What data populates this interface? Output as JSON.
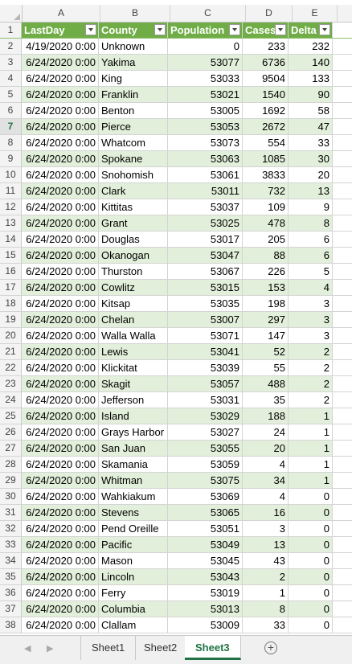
{
  "columns": [
    "A",
    "B",
    "C",
    "D",
    "E"
  ],
  "header": {
    "row_num": "1",
    "cells": [
      "LastDay",
      "County",
      "Population",
      "Cases",
      "Delta"
    ]
  },
  "rows": [
    [
      "2",
      "4/19/2020 0:00",
      "Unknown",
      "0",
      "233",
      "232"
    ],
    [
      "3",
      "6/24/2020 0:00",
      "Yakima",
      "53077",
      "6736",
      "140"
    ],
    [
      "4",
      "6/24/2020 0:00",
      "King",
      "53033",
      "9504",
      "133"
    ],
    [
      "5",
      "6/24/2020 0:00",
      "Franklin",
      "53021",
      "1540",
      "90"
    ],
    [
      "6",
      "6/24/2020 0:00",
      "Benton",
      "53005",
      "1692",
      "58"
    ],
    [
      "7",
      "6/24/2020 0:00",
      "Pierce",
      "53053",
      "2672",
      "47"
    ],
    [
      "8",
      "6/24/2020 0:00",
      "Whatcom",
      "53073",
      "554",
      "33"
    ],
    [
      "9",
      "6/24/2020 0:00",
      "Spokane",
      "53063",
      "1085",
      "30"
    ],
    [
      "10",
      "6/24/2020 0:00",
      "Snohomish",
      "53061",
      "3833",
      "20"
    ],
    [
      "11",
      "6/24/2020 0:00",
      "Clark",
      "53011",
      "732",
      "13"
    ],
    [
      "12",
      "6/24/2020 0:00",
      "Kittitas",
      "53037",
      "109",
      "9"
    ],
    [
      "13",
      "6/24/2020 0:00",
      "Grant",
      "53025",
      "478",
      "8"
    ],
    [
      "14",
      "6/24/2020 0:00",
      "Douglas",
      "53017",
      "205",
      "6"
    ],
    [
      "15",
      "6/24/2020 0:00",
      "Okanogan",
      "53047",
      "88",
      "6"
    ],
    [
      "16",
      "6/24/2020 0:00",
      "Thurston",
      "53067",
      "226",
      "5"
    ],
    [
      "17",
      "6/24/2020 0:00",
      "Cowlitz",
      "53015",
      "153",
      "4"
    ],
    [
      "18",
      "6/24/2020 0:00",
      "Kitsap",
      "53035",
      "198",
      "3"
    ],
    [
      "19",
      "6/24/2020 0:00",
      "Chelan",
      "53007",
      "297",
      "3"
    ],
    [
      "20",
      "6/24/2020 0:00",
      "Walla Walla",
      "53071",
      "147",
      "3"
    ],
    [
      "21",
      "6/24/2020 0:00",
      "Lewis",
      "53041",
      "52",
      "2"
    ],
    [
      "22",
      "6/24/2020 0:00",
      "Klickitat",
      "53039",
      "55",
      "2"
    ],
    [
      "23",
      "6/24/2020 0:00",
      "Skagit",
      "53057",
      "488",
      "2"
    ],
    [
      "24",
      "6/24/2020 0:00",
      "Jefferson",
      "53031",
      "35",
      "2"
    ],
    [
      "25",
      "6/24/2020 0:00",
      "Island",
      "53029",
      "188",
      "1"
    ],
    [
      "26",
      "6/24/2020 0:00",
      "Grays Harbor",
      "53027",
      "24",
      "1"
    ],
    [
      "27",
      "6/24/2020 0:00",
      "San Juan",
      "53055",
      "20",
      "1"
    ],
    [
      "28",
      "6/24/2020 0:00",
      "Skamania",
      "53059",
      "4",
      "1"
    ],
    [
      "29",
      "6/24/2020 0:00",
      "Whitman",
      "53075",
      "34",
      "1"
    ],
    [
      "30",
      "6/24/2020 0:00",
      "Wahkiakum",
      "53069",
      "4",
      "0"
    ],
    [
      "31",
      "6/24/2020 0:00",
      "Stevens",
      "53065",
      "16",
      "0"
    ],
    [
      "32",
      "6/24/2020 0:00",
      "Pend Oreille",
      "53051",
      "3",
      "0"
    ],
    [
      "33",
      "6/24/2020 0:00",
      "Pacific",
      "53049",
      "13",
      "0"
    ],
    [
      "34",
      "6/24/2020 0:00",
      "Mason",
      "53045",
      "43",
      "0"
    ],
    [
      "35",
      "6/24/2020 0:00",
      "Lincoln",
      "53043",
      "2",
      "0"
    ],
    [
      "36",
      "6/24/2020 0:00",
      "Ferry",
      "53019",
      "1",
      "0"
    ],
    [
      "37",
      "6/24/2020 0:00",
      "Columbia",
      "53013",
      "8",
      "0"
    ],
    [
      "38",
      "6/24/2020 0:00",
      "Clallam",
      "53009",
      "33",
      "0"
    ]
  ],
  "selected_row": "7",
  "tabs": [
    {
      "label": "Sheet1",
      "active": false
    },
    {
      "label": "Sheet2",
      "active": false
    },
    {
      "label": "Sheet3",
      "active": true
    }
  ],
  "add_sheet_symbol": "+",
  "nav": {
    "prev_symbol": "◀",
    "next_symbol": "▶"
  },
  "colors": {
    "header_fill": "#70ad47",
    "band_fill": "#e2efda",
    "accent": "#217346"
  }
}
